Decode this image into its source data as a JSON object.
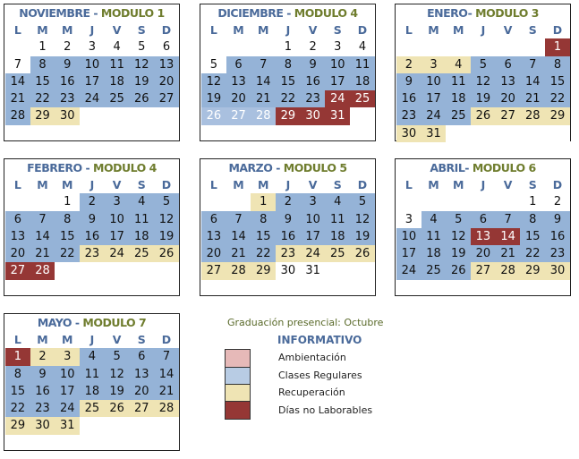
{
  "weekdays": [
    "L",
    "M",
    "M",
    "J",
    "V",
    "S",
    "D"
  ],
  "months": [
    {
      "month": "NOVIEMBRE -",
      "module": " MODULO 1",
      "weeks": [
        {
          "days": [
            "",
            "1",
            "2",
            "3",
            "4",
            "5",
            "6"
          ],
          "status": "wwwwwww"
        },
        {
          "days": [
            "7",
            "8",
            "9",
            "10",
            "11",
            "12",
            "13"
          ],
          "status": "wrrrrrr"
        },
        {
          "days": [
            "14",
            "15",
            "16",
            "17",
            "18",
            "19",
            "20"
          ],
          "status": "rrrrrrr"
        },
        {
          "days": [
            "21",
            "22",
            "23",
            "24",
            "25",
            "26",
            "27"
          ],
          "status": "rrrrrrr"
        },
        {
          "days": [
            "28",
            "29",
            "30",
            "",
            "",
            "",
            ""
          ],
          "status": "ryywwww"
        }
      ]
    },
    {
      "month": "DICIEMBRE -",
      "module": " MODULO 4",
      "weeks": [
        {
          "days": [
            "",
            "",
            "",
            "1",
            "2",
            "3",
            "4"
          ],
          "status": "wwwwwww"
        },
        {
          "days": [
            "5",
            "6",
            "7",
            "8",
            "9",
            "10",
            "11"
          ],
          "status": "wrrrrrr"
        },
        {
          "days": [
            "12",
            "13",
            "14",
            "15",
            "16",
            "17",
            "18"
          ],
          "status": "rrrrrrr"
        },
        {
          "days": [
            "19",
            "20",
            "21",
            "22",
            "23",
            "24",
            "25"
          ],
          "status": "rrrrrnn"
        },
        {
          "days": [
            "26",
            "27",
            "28",
            "29",
            "30",
            "31",
            ""
          ],
          "status": "lllnnnw"
        }
      ]
    },
    {
      "month": "ENERO-",
      "module": " MODULO 3",
      "weeks": [
        {
          "days": [
            "",
            "",
            "",
            "",
            "",
            "",
            "1"
          ],
          "status": "wwwwwwn"
        },
        {
          "days": [
            "2",
            "3",
            "4",
            "5",
            "6",
            "7",
            "8"
          ],
          "status": "yyyrrrr"
        },
        {
          "days": [
            "9",
            "10",
            "11",
            "12",
            "13",
            "14",
            "15"
          ],
          "status": "rrrrrrr"
        },
        {
          "days": [
            "16",
            "17",
            "18",
            "19",
            "20",
            "21",
            "22"
          ],
          "status": "rrrrrrr"
        },
        {
          "days": [
            "23",
            "24",
            "25",
            "26",
            "27",
            "28",
            "29"
          ],
          "status": "rrryyyy"
        },
        {
          "days": [
            "30",
            "31",
            "",
            "",
            "",
            "",
            ""
          ],
          "status": "yywwwww"
        }
      ]
    },
    {
      "month": "FEBRERO -",
      "module": " MODULO 4",
      "weeks": [
        {
          "days": [
            "",
            "",
            "1",
            "2",
            "3",
            "4",
            "5"
          ],
          "status": "wwwrrrr"
        },
        {
          "days": [
            "6",
            "7",
            "8",
            "9",
            "10",
            "11",
            "12"
          ],
          "status": "rrrrrrr"
        },
        {
          "days": [
            "13",
            "14",
            "15",
            "16",
            "17",
            "18",
            "19"
          ],
          "status": "rrrrrrr"
        },
        {
          "days": [
            "20",
            "21",
            "22",
            "23",
            "24",
            "25",
            "26"
          ],
          "status": "rrryyyy"
        },
        {
          "days": [
            "27",
            "28",
            "",
            "",
            "",
            "",
            ""
          ],
          "status": "nnwwwww"
        }
      ]
    },
    {
      "month": "MARZO -",
      "module": " MODULO 5",
      "weeks": [
        {
          "days": [
            "",
            "",
            "1",
            "2",
            "3",
            "4",
            "5"
          ],
          "status": "wwyrrrr"
        },
        {
          "days": [
            "6",
            "7",
            "8",
            "9",
            "10",
            "11",
            "12"
          ],
          "status": "rrrrrrr"
        },
        {
          "days": [
            "13",
            "14",
            "15",
            "16",
            "17",
            "18",
            "19"
          ],
          "status": "rrrrrrr"
        },
        {
          "days": [
            "20",
            "21",
            "22",
            "23",
            "24",
            "25",
            "26"
          ],
          "status": "rrryyyy"
        },
        {
          "days": [
            "27",
            "28",
            "29",
            "30",
            "31",
            "",
            ""
          ],
          "status": "yyywwww"
        }
      ]
    },
    {
      "month": "ABRIL-",
      "module": " MODULO 6",
      "weeks": [
        {
          "days": [
            "",
            "",
            "",
            "",
            "",
            "1",
            "2"
          ],
          "status": "wwwwwww"
        },
        {
          "days": [
            "3",
            "4",
            "5",
            "6",
            "7",
            "8",
            "9"
          ],
          "status": "wrrrrrr"
        },
        {
          "days": [
            "10",
            "11",
            "12",
            "13",
            "14",
            "15",
            "16"
          ],
          "status": "rrrnnrr"
        },
        {
          "days": [
            "17",
            "18",
            "19",
            "20",
            "21",
            "22",
            "23"
          ],
          "status": "rrrrrrr"
        },
        {
          "days": [
            "24",
            "25",
            "26",
            "27",
            "28",
            "29",
            "30"
          ],
          "status": "rrryyyy"
        }
      ]
    },
    {
      "month": "MAYO -",
      "module": " MODULO 7",
      "weeks": [
        {
          "days": [
            "1",
            "2",
            "3",
            "4",
            "5",
            "6",
            "7"
          ],
          "status": "nyyrrrr"
        },
        {
          "days": [
            "8",
            "9",
            "10",
            "11",
            "12",
            "13",
            "14"
          ],
          "status": "rrrrrrr"
        },
        {
          "days": [
            "15",
            "16",
            "17",
            "18",
            "19",
            "20",
            "21"
          ],
          "status": "rrrrrrr"
        },
        {
          "days": [
            "22",
            "23",
            "24",
            "25",
            "26",
            "27",
            "28"
          ],
          "status": "rrryyyy"
        },
        {
          "days": [
            "29",
            "30",
            "31",
            "",
            "",
            "",
            ""
          ],
          "status": "yyywwww"
        }
      ]
    }
  ],
  "note": "Graduación presencial: Octubre",
  "legend": {
    "title": "INFORMATIVO",
    "items": [
      {
        "label": "Ambientación",
        "color": "#e6b9b8"
      },
      {
        "label": "Clases Regulares",
        "color": "#b8cce4"
      },
      {
        "label": "Recuperación",
        "color": "#efe4b4"
      },
      {
        "label": "Días no Laborables",
        "color": "#953735"
      }
    ]
  },
  "colors": {
    "regular": "#95b3d7",
    "recuperacion": "#efe4b4",
    "no_laborable": "#953735"
  }
}
